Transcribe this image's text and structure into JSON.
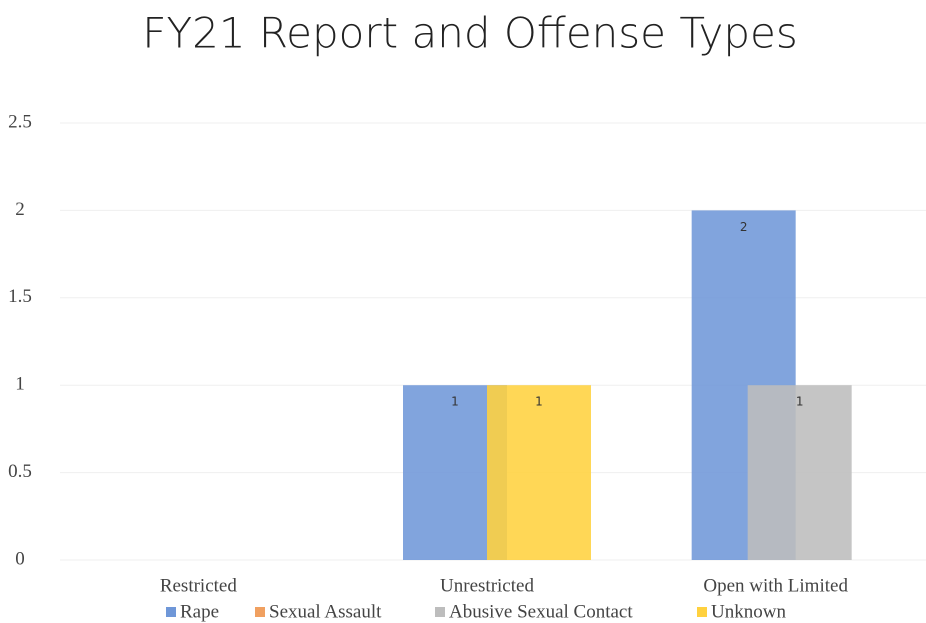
{
  "chart_data": {
    "type": "bar",
    "title": "FY21 Report and Offense Types",
    "categories": [
      "Restricted",
      "Unrestricted",
      "Open with Limited"
    ],
    "series": [
      {
        "name": "Rape",
        "color": "#6f97d8",
        "values": [
          0,
          1,
          2
        ]
      },
      {
        "name": "Sexual Assault",
        "color": "#f0a060",
        "values": [
          0,
          0,
          0
        ]
      },
      {
        "name": "Abusive Sexual Contact",
        "color": "#bdbdbd",
        "values": [
          0,
          0,
          1
        ]
      },
      {
        "name": "Unknown",
        "color": "#ffd13f",
        "values": [
          0,
          1,
          0
        ]
      }
    ],
    "ylim": [
      0,
      2.5
    ],
    "yticks": [
      0,
      0.5,
      1,
      1.5,
      2,
      2.5
    ],
    "grid": true
  }
}
